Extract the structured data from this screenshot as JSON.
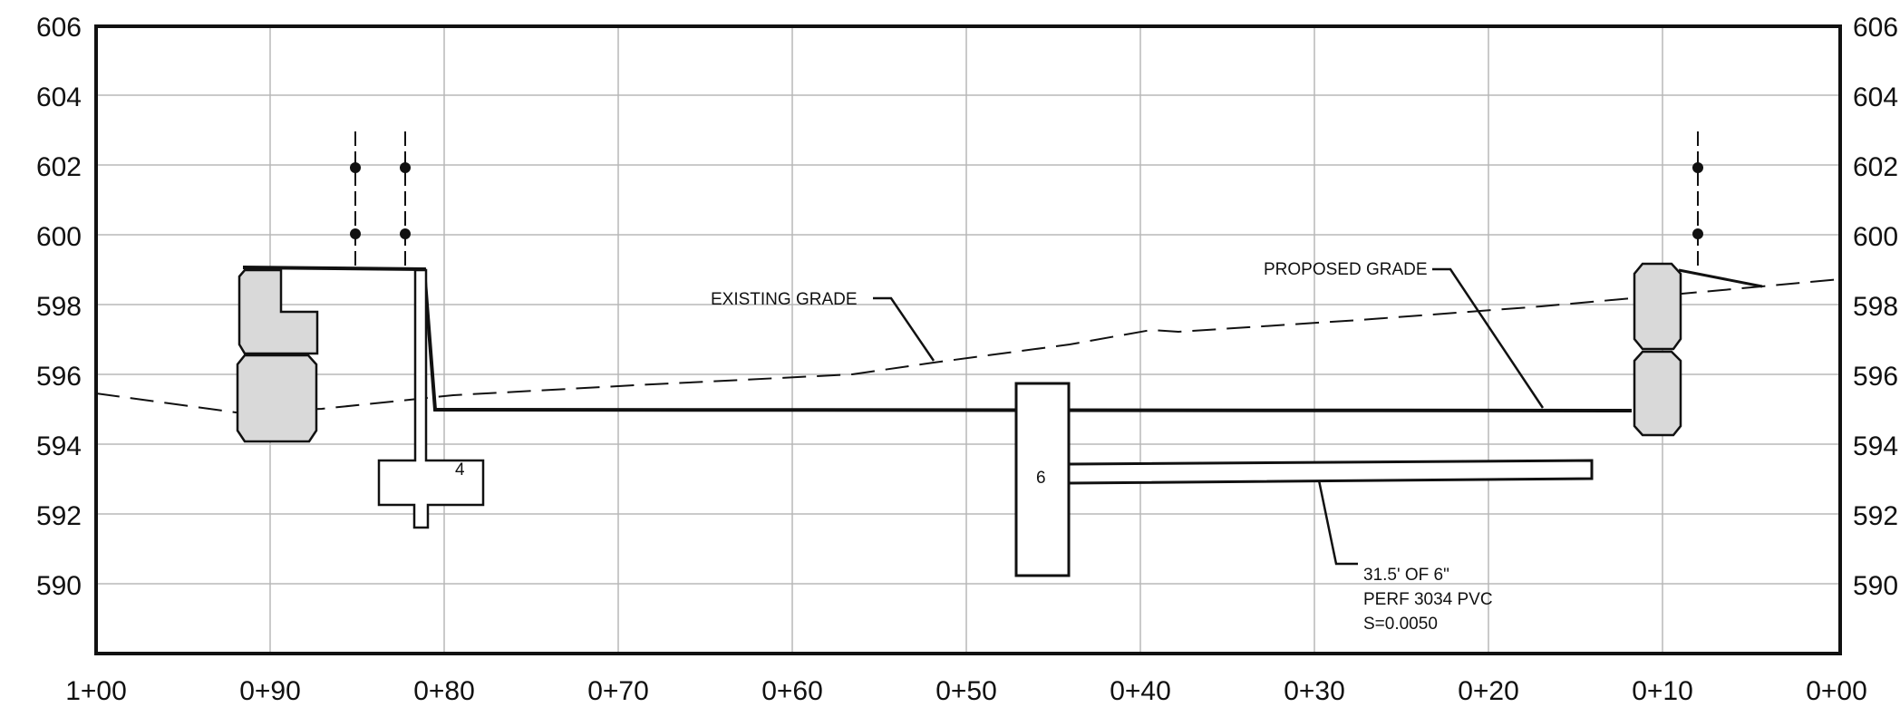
{
  "left_elevations": [
    "606",
    "604",
    "602",
    "600",
    "598",
    "596",
    "594",
    "592",
    "590"
  ],
  "right_elevations": [
    "606",
    "604",
    "602",
    "600",
    "598",
    "596",
    "594",
    "592",
    "590"
  ],
  "stations": [
    "1+00",
    "0+90",
    "0+80",
    "0+70",
    "0+60",
    "0+50",
    "0+40",
    "0+30",
    "0+20",
    "0+10",
    "0+00"
  ],
  "labels": {
    "existing_grade": "EXISTING GRADE",
    "proposed_grade": "PROPOSED GRADE",
    "pipe_line1": "31.5' OF 6\"",
    "pipe_line2": "PERF 3034 PVC",
    "pipe_line3": "S=0.0050",
    "structure_number": "6",
    "footing_number": "4"
  },
  "colors": {
    "line": "#111111",
    "grid": "#b8b8b8",
    "curb_fill": "#d9d9d9"
  }
}
